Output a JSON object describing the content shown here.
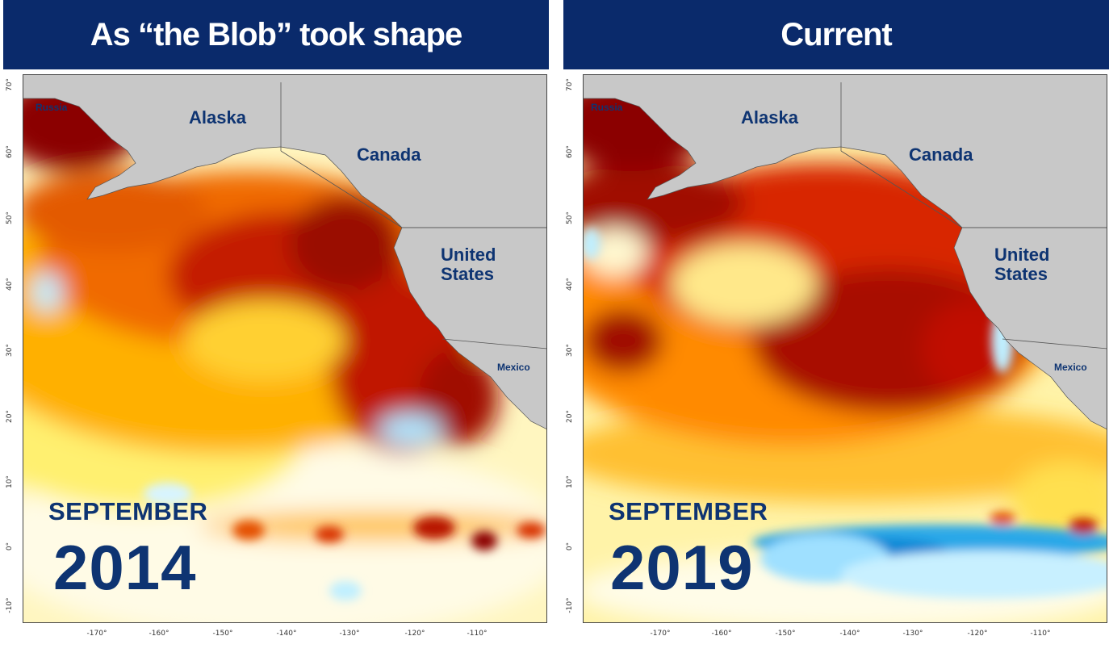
{
  "panels": [
    {
      "title": "As “the Blob” took shape",
      "month": "SEPTEMBER",
      "year": "2014",
      "labels": {
        "russia": "Russia",
        "alaska": "Alaska",
        "canada": "Canada",
        "us_line1": "United",
        "us_line2": "States",
        "mexico": "Mexico"
      },
      "y_ticks": [
        "70°",
        "60°",
        "50°",
        "40°",
        "30°",
        "20°",
        "10°",
        "0°",
        "-10°"
      ],
      "x_ticks": [
        "-170°",
        "-160°",
        "-150°",
        "-140°",
        "-130°",
        "-120°",
        "-110°"
      ]
    },
    {
      "title": "Current",
      "month": "SEPTEMBER",
      "year": "2019",
      "labels": {
        "russia": "Russia",
        "alaska": "Alaska",
        "canada": "Canada",
        "us_line1": "United",
        "us_line2": "States",
        "mexico": "Mexico"
      },
      "y_ticks": [
        "70°",
        "60°",
        "50°",
        "40°",
        "30°",
        "20°",
        "10°",
        "0°",
        "-10°"
      ],
      "x_ticks": [
        "-170°",
        "-160°",
        "-150°",
        "-140°",
        "-130°",
        "-120°",
        "-110°"
      ]
    }
  ],
  "colors": {
    "banner": "#0a2a6b",
    "land": "#c8c8c8",
    "hot_dark": "#8b0000",
    "hot": "#e03a00",
    "warm": "#ff9a00",
    "mild": "#ffe14a",
    "neutral": "#fffbe0",
    "cool": "#bfefff",
    "cold": "#1fa8e6"
  }
}
